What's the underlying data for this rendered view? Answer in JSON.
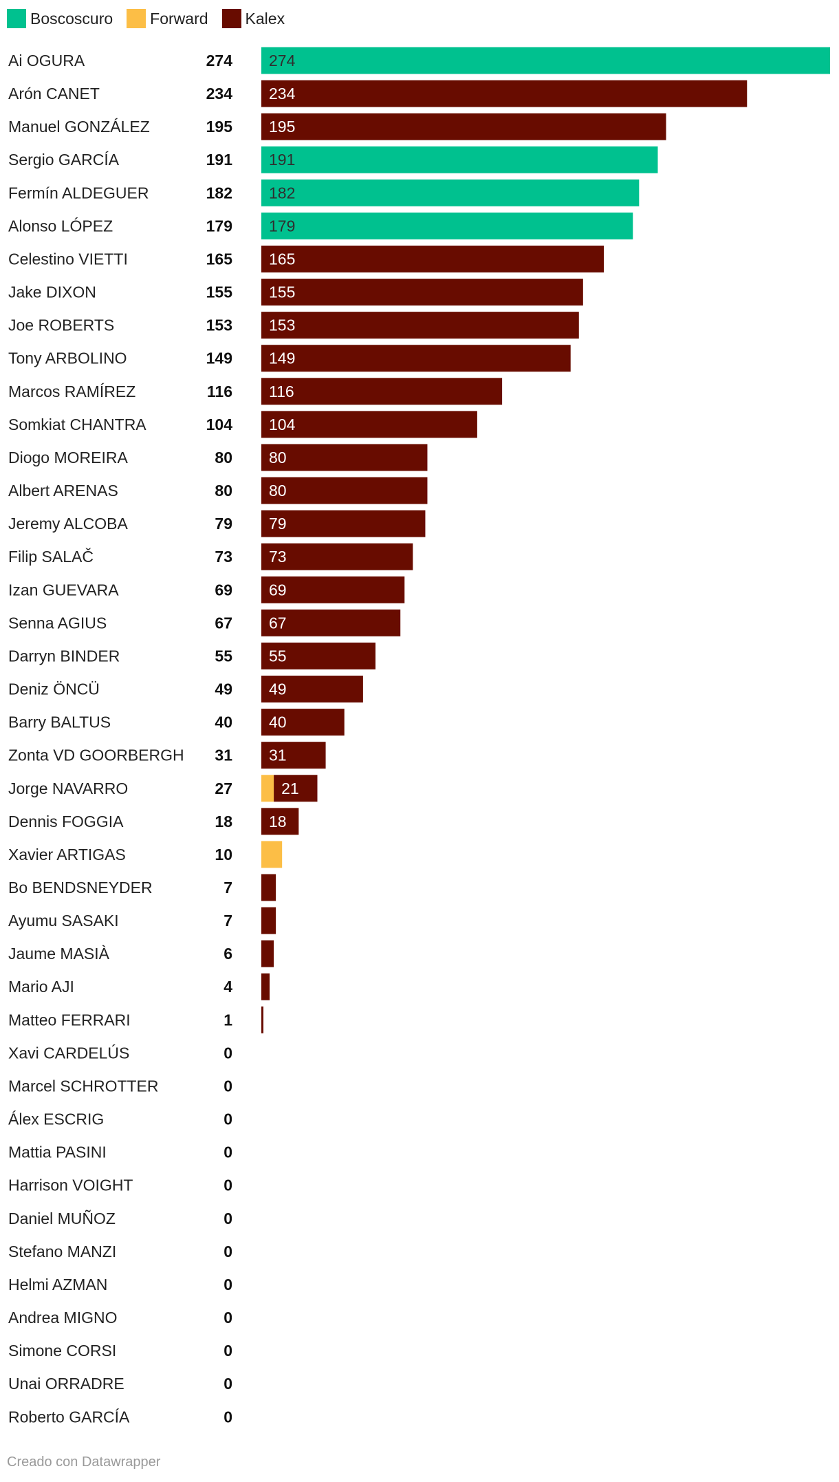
{
  "legend": [
    {
      "label": "Boscoscuro",
      "color": "#00c18f"
    },
    {
      "label": "Forward",
      "color": "#fcbe46"
    },
    {
      "label": "Kalex",
      "color": "#680c00"
    }
  ],
  "footer": {
    "credit": "Creado con Datawrapper"
  },
  "chart_data": {
    "type": "bar",
    "orientation": "horizontal",
    "stacked": true,
    "xlim": [
      0,
      274
    ],
    "colors": {
      "Boscoscuro": "#00c18f",
      "Forward": "#fcbe46",
      "Kalex": "#680c00"
    },
    "rows": [
      {
        "name": "Ai OGURA",
        "total": 274,
        "segments": [
          {
            "series": "Boscoscuro",
            "value": 274,
            "label": "274"
          }
        ]
      },
      {
        "name": "Arón CANET",
        "total": 234,
        "segments": [
          {
            "series": "Kalex",
            "value": 234,
            "label": "234"
          }
        ]
      },
      {
        "name": "Manuel GONZÁLEZ",
        "total": 195,
        "segments": [
          {
            "series": "Kalex",
            "value": 195,
            "label": "195"
          }
        ]
      },
      {
        "name": "Sergio GARCÍA",
        "total": 191,
        "segments": [
          {
            "series": "Boscoscuro",
            "value": 191,
            "label": "191"
          }
        ]
      },
      {
        "name": "Fermín ALDEGUER",
        "total": 182,
        "segments": [
          {
            "series": "Boscoscuro",
            "value": 182,
            "label": "182"
          }
        ]
      },
      {
        "name": "Alonso LÓPEZ",
        "total": 179,
        "segments": [
          {
            "series": "Boscoscuro",
            "value": 179,
            "label": "179"
          }
        ]
      },
      {
        "name": "Celestino VIETTI",
        "total": 165,
        "segments": [
          {
            "series": "Kalex",
            "value": 165,
            "label": "165"
          }
        ]
      },
      {
        "name": "Jake DIXON",
        "total": 155,
        "segments": [
          {
            "series": "Kalex",
            "value": 155,
            "label": "155"
          }
        ]
      },
      {
        "name": "Joe ROBERTS",
        "total": 153,
        "segments": [
          {
            "series": "Kalex",
            "value": 153,
            "label": "153"
          }
        ]
      },
      {
        "name": "Tony ARBOLINO",
        "total": 149,
        "segments": [
          {
            "series": "Kalex",
            "value": 149,
            "label": "149"
          }
        ]
      },
      {
        "name": "Marcos RAMÍREZ",
        "total": 116,
        "segments": [
          {
            "series": "Kalex",
            "value": 116,
            "label": "116"
          }
        ]
      },
      {
        "name": "Somkiat CHANTRA",
        "total": 104,
        "segments": [
          {
            "series": "Kalex",
            "value": 104,
            "label": "104"
          }
        ]
      },
      {
        "name": "Diogo MOREIRA",
        "total": 80,
        "segments": [
          {
            "series": "Kalex",
            "value": 80,
            "label": "80"
          }
        ]
      },
      {
        "name": "Albert ARENAS",
        "total": 80,
        "segments": [
          {
            "series": "Kalex",
            "value": 80,
            "label": "80"
          }
        ]
      },
      {
        "name": "Jeremy ALCOBA",
        "total": 79,
        "segments": [
          {
            "series": "Kalex",
            "value": 79,
            "label": "79"
          }
        ]
      },
      {
        "name": "Filip SALAČ",
        "total": 73,
        "segments": [
          {
            "series": "Kalex",
            "value": 73,
            "label": "73"
          }
        ]
      },
      {
        "name": "Izan GUEVARA",
        "total": 69,
        "segments": [
          {
            "series": "Kalex",
            "value": 69,
            "label": "69"
          }
        ]
      },
      {
        "name": "Senna AGIUS",
        "total": 67,
        "segments": [
          {
            "series": "Kalex",
            "value": 67,
            "label": "67"
          }
        ]
      },
      {
        "name": "Darryn BINDER",
        "total": 55,
        "segments": [
          {
            "series": "Kalex",
            "value": 55,
            "label": "55"
          }
        ]
      },
      {
        "name": "Deniz ÖNCÜ",
        "total": 49,
        "segments": [
          {
            "series": "Kalex",
            "value": 49,
            "label": "49"
          }
        ]
      },
      {
        "name": "Barry BALTUS",
        "total": 40,
        "segments": [
          {
            "series": "Kalex",
            "value": 40,
            "label": "40"
          }
        ]
      },
      {
        "name": "Zonta VD GOORBERGH",
        "total": 31,
        "segments": [
          {
            "series": "Kalex",
            "value": 31,
            "label": "31"
          }
        ]
      },
      {
        "name": "Jorge NAVARRO",
        "total": 27,
        "segments": [
          {
            "series": "Forward",
            "value": 6,
            "label": ""
          },
          {
            "series": "Kalex",
            "value": 21,
            "label": "21"
          }
        ]
      },
      {
        "name": "Dennis FOGGIA",
        "total": 18,
        "segments": [
          {
            "series": "Kalex",
            "value": 18,
            "label": "18"
          }
        ]
      },
      {
        "name": "Xavier ARTIGAS",
        "total": 10,
        "segments": [
          {
            "series": "Forward",
            "value": 10,
            "label": ""
          }
        ]
      },
      {
        "name": "Bo BENDSNEYDER",
        "total": 7,
        "segments": [
          {
            "series": "Kalex",
            "value": 7,
            "label": ""
          }
        ]
      },
      {
        "name": "Ayumu SASAKI",
        "total": 7,
        "segments": [
          {
            "series": "Kalex",
            "value": 7,
            "label": ""
          }
        ]
      },
      {
        "name": "Jaume MASIÀ",
        "total": 6,
        "segments": [
          {
            "series": "Kalex",
            "value": 6,
            "label": ""
          }
        ]
      },
      {
        "name": "Mario AJI",
        "total": 4,
        "segments": [
          {
            "series": "Kalex",
            "value": 4,
            "label": ""
          }
        ]
      },
      {
        "name": "Matteo FERRARI",
        "total": 1,
        "segments": [
          {
            "series": "Kalex",
            "value": 1,
            "label": ""
          }
        ]
      },
      {
        "name": "Xavi CARDELÚS",
        "total": 0,
        "segments": []
      },
      {
        "name": "Marcel SCHROTTER",
        "total": 0,
        "segments": []
      },
      {
        "name": "Álex ESCRIG",
        "total": 0,
        "segments": []
      },
      {
        "name": "Mattia PASINI",
        "total": 0,
        "segments": []
      },
      {
        "name": "Harrison VOIGHT",
        "total": 0,
        "segments": []
      },
      {
        "name": "Daniel MUÑOZ",
        "total": 0,
        "segments": []
      },
      {
        "name": "Stefano MANZI",
        "total": 0,
        "segments": []
      },
      {
        "name": "Helmi AZMAN",
        "total": 0,
        "segments": []
      },
      {
        "name": "Andrea MIGNO",
        "total": 0,
        "segments": []
      },
      {
        "name": "Simone CORSI",
        "total": 0,
        "segments": []
      },
      {
        "name": "Unai ORRADRE",
        "total": 0,
        "segments": []
      },
      {
        "name": "Roberto GARCÍA",
        "total": 0,
        "segments": []
      }
    ]
  }
}
